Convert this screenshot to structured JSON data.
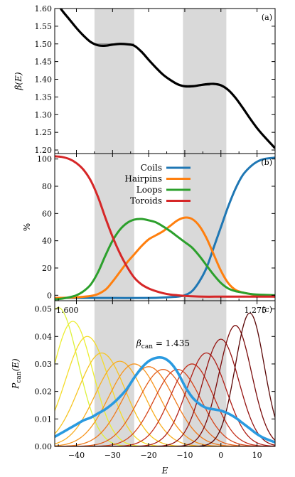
{
  "chart_data": [
    {
      "panel_label": "(a)",
      "type": "line",
      "ylabel": "β(E)",
      "xlim": [
        -46,
        15
      ],
      "ylim": [
        1.19,
        1.6
      ],
      "yticks": [
        "1.20",
        "1.25",
        "1.30",
        "1.35",
        "1.40",
        "1.45",
        "1.50",
        "1.55",
        "1.60"
      ],
      "shaded_regions": [
        [
          -35,
          -24
        ],
        [
          -10.5,
          1.5
        ]
      ],
      "plateaus": [
        {
          "x": [
            -35,
            -24
          ],
          "y": 1.5
        },
        {
          "x": [
            -10.5,
            -3
          ],
          "y": 1.383
        }
      ],
      "series": [
        {
          "x": [
            -46,
            -44,
            -42,
            -40,
            -38,
            -36,
            -34,
            -32,
            -30,
            -28,
            -26,
            -24,
            -22,
            -20,
            -18,
            -16,
            -14,
            -12,
            -10,
            -8,
            -6,
            -4,
            -2,
            0,
            2,
            4,
            6,
            8,
            10,
            12,
            15
          ],
          "y": [
            1.625,
            1.595,
            1.57,
            1.545,
            1.523,
            1.505,
            1.496,
            1.495,
            1.498,
            1.5,
            1.499,
            1.495,
            1.478,
            1.455,
            1.433,
            1.413,
            1.398,
            1.386,
            1.38,
            1.38,
            1.383,
            1.386,
            1.387,
            1.383,
            1.37,
            1.348,
            1.32,
            1.29,
            1.262,
            1.238,
            1.205
          ]
        }
      ]
    },
    {
      "panel_label": "(b)",
      "type": "line",
      "ylabel": "%",
      "xlim": [
        -46,
        15
      ],
      "ylim": [
        -4,
        104
      ],
      "yticks": [
        "0",
        "20",
        "40",
        "60",
        "80",
        "100"
      ],
      "shaded_regions": [
        [
          -35,
          -24
        ],
        [
          -10.5,
          1.5
        ]
      ],
      "legend_placement": "top-center",
      "series": [
        {
          "name": "Coils",
          "color": "#1f77b4",
          "x": [
            -46,
            -40,
            -30,
            -20,
            -15,
            -12,
            -10,
            -8,
            -6,
            -4,
            -2,
            0,
            2,
            4,
            6,
            8,
            10,
            12,
            15
          ],
          "y": [
            -2,
            -2,
            -2,
            -2,
            -1.5,
            -1,
            0,
            3,
            10,
            20,
            35,
            50,
            65,
            78,
            88,
            94,
            98,
            100,
            101
          ]
        },
        {
          "name": "Hairpins",
          "color": "#ff7f0e",
          "x": [
            -46,
            -40,
            -35,
            -32,
            -30,
            -28,
            -26,
            -24,
            -22,
            -20,
            -18,
            -16,
            -14,
            -12,
            -10,
            -8,
            -6,
            -4,
            -2,
            0,
            2,
            4,
            6,
            8,
            10,
            15
          ],
          "y": [
            -2,
            -1.5,
            0,
            4,
            10,
            17,
            24,
            30,
            36,
            41,
            44,
            47,
            51,
            55,
            57,
            56,
            51,
            42,
            30,
            18,
            9,
            4,
            2,
            1,
            0,
            -1
          ]
        },
        {
          "name": "Loops",
          "color": "#2ca02c",
          "x": [
            -46,
            -44,
            -42,
            -40,
            -38,
            -36,
            -34,
            -32,
            -30,
            -28,
            -26,
            -24,
            -22,
            -20,
            -18,
            -16,
            -14,
            -12,
            -10,
            -8,
            -6,
            -4,
            -2,
            0,
            2,
            4,
            6,
            8,
            10,
            15
          ],
          "y": [
            -3,
            -2.5,
            -1.5,
            0,
            3,
            8,
            17,
            29,
            40,
            48,
            53,
            55.5,
            56,
            55,
            53.5,
            50.5,
            47,
            43,
            39,
            35,
            29,
            22,
            15,
            9,
            5,
            3,
            2,
            1,
            0.5,
            0
          ]
        },
        {
          "name": "Toroids",
          "color": "#d62728",
          "x": [
            -46,
            -44,
            -42,
            -40,
            -38,
            -36,
            -34,
            -32,
            -30,
            -28,
            -26,
            -24,
            -22,
            -20,
            -18,
            -16,
            -14,
            -12,
            -10,
            -5,
            0,
            5,
            10,
            15
          ],
          "y": [
            102,
            101.5,
            100,
            97,
            92,
            84,
            72,
            57,
            43,
            31,
            21,
            13,
            8,
            5,
            3,
            1.5,
            0.5,
            0,
            -0.5,
            -1,
            -1,
            -1,
            -1,
            -1
          ]
        }
      ]
    },
    {
      "panel_label": "(c)",
      "type": "line",
      "ylabel": "Pcan(E)",
      "xlabel": "E",
      "xlim": [
        -46,
        15
      ],
      "ylim": [
        0,
        0.053
      ],
      "xticks": [
        "−40",
        "−30",
        "−20",
        "−10",
        "0",
        "10"
      ],
      "yticks": [
        "0.00",
        "0.01",
        "0.02",
        "0.03",
        "0.04",
        "0.05"
      ],
      "shaded_regions": [
        [
          -35,
          -24
        ],
        [
          -10.5,
          1.5
        ]
      ],
      "annotations": {
        "left": "1.600",
        "right": "1.275",
        "center": "βcan = 1.435"
      },
      "family": {
        "betas": [
          1.6,
          1.575,
          1.55,
          1.525,
          1.5,
          1.475,
          1.45,
          1.425,
          1.4,
          1.375,
          1.35,
          1.325,
          1.3,
          1.275
        ],
        "colors": [
          "#ddf23a",
          "#ecee30",
          "#f4dc28",
          "#f7c523",
          "#f8ad20",
          "#f7941d",
          "#f07a1c",
          "#e4601c",
          "#d6461c",
          "#c42f1a",
          "#af1e16",
          "#951310",
          "#7a0b0a",
          "#5a0606"
        ],
        "centers": [
          -45,
          -41,
          -37,
          -33,
          -28,
          -24,
          -20,
          -16,
          -12,
          -8,
          -4,
          0,
          4,
          8
        ],
        "widths": [
          5.5,
          5.5,
          6.0,
          6.5,
          6.8,
          7.0,
          7.0,
          6.8,
          6.5,
          6.0,
          5.5,
          5.0,
          4.5,
          4.0
        ],
        "peaks": [
          0.0505,
          0.0455,
          0.04,
          0.034,
          0.031,
          0.03,
          0.029,
          0.028,
          0.028,
          0.03,
          0.034,
          0.039,
          0.044,
          0.0485
        ]
      },
      "highlight": {
        "beta": 1.435,
        "color": "#2a9ae0",
        "x": [
          -46,
          -44,
          -42,
          -40,
          -38,
          -36,
          -34,
          -32,
          -30,
          -28,
          -26,
          -24,
          -22,
          -20,
          -18,
          -16,
          -14,
          -12,
          -10,
          -8,
          -6,
          -4,
          -2,
          0,
          2,
          4,
          6,
          8,
          10,
          12,
          15
        ],
        "y": [
          0.0035,
          0.005,
          0.0065,
          0.008,
          0.0095,
          0.0105,
          0.012,
          0.0135,
          0.0155,
          0.018,
          0.021,
          0.025,
          0.0285,
          0.031,
          0.0322,
          0.0322,
          0.0305,
          0.027,
          0.022,
          0.018,
          0.0155,
          0.014,
          0.0135,
          0.013,
          0.012,
          0.0105,
          0.0085,
          0.0065,
          0.0045,
          0.003,
          0.0015
        ]
      }
    }
  ]
}
